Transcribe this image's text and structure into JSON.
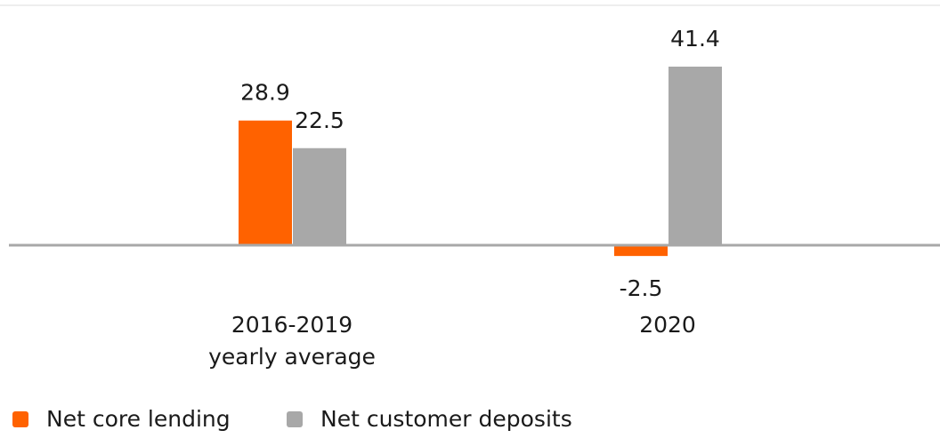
{
  "chart_data": {
    "type": "bar",
    "categories": [
      "2016-2019\nyearly average",
      "2020"
    ],
    "series": [
      {
        "name": "Net core lending",
        "color": "#ff6200",
        "values": [
          28.9,
          -2.5
        ]
      },
      {
        "name": "Net customer deposits",
        "color": "#a8a8a8",
        "values": [
          22.5,
          41.4
        ]
      }
    ]
  }
}
